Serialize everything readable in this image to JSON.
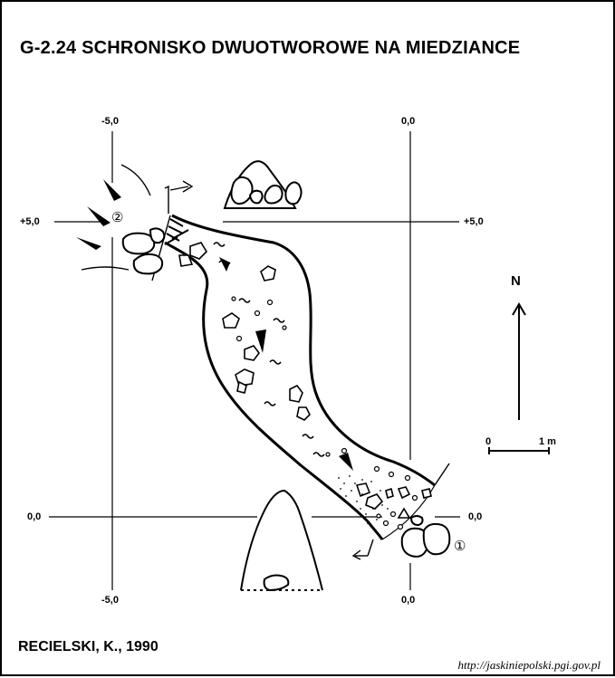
{
  "title": "G-2.24  SCHRONISKO DWUOTWOROWE NA MIEDZIANCE",
  "grid": {
    "top_left": "-5,0",
    "top_right": "0,0",
    "left_upper": "+5,0",
    "right_upper": "+5,0",
    "left_lower": "0,0",
    "right_lower": "0,0",
    "bottom_left": "-5,0",
    "bottom_right": "0,0"
  },
  "entrances": {
    "one": "①",
    "two": "②"
  },
  "north": {
    "letter": "N",
    "icon": "north-arrow-icon"
  },
  "scale": {
    "start": "0",
    "end": "1 m"
  },
  "author": "RECIELSKI, K., 1990",
  "source": "http://jaskiniepolski.pgi.gov.pl",
  "colors": {
    "ink": "#000000",
    "paper": "#ffffff"
  }
}
